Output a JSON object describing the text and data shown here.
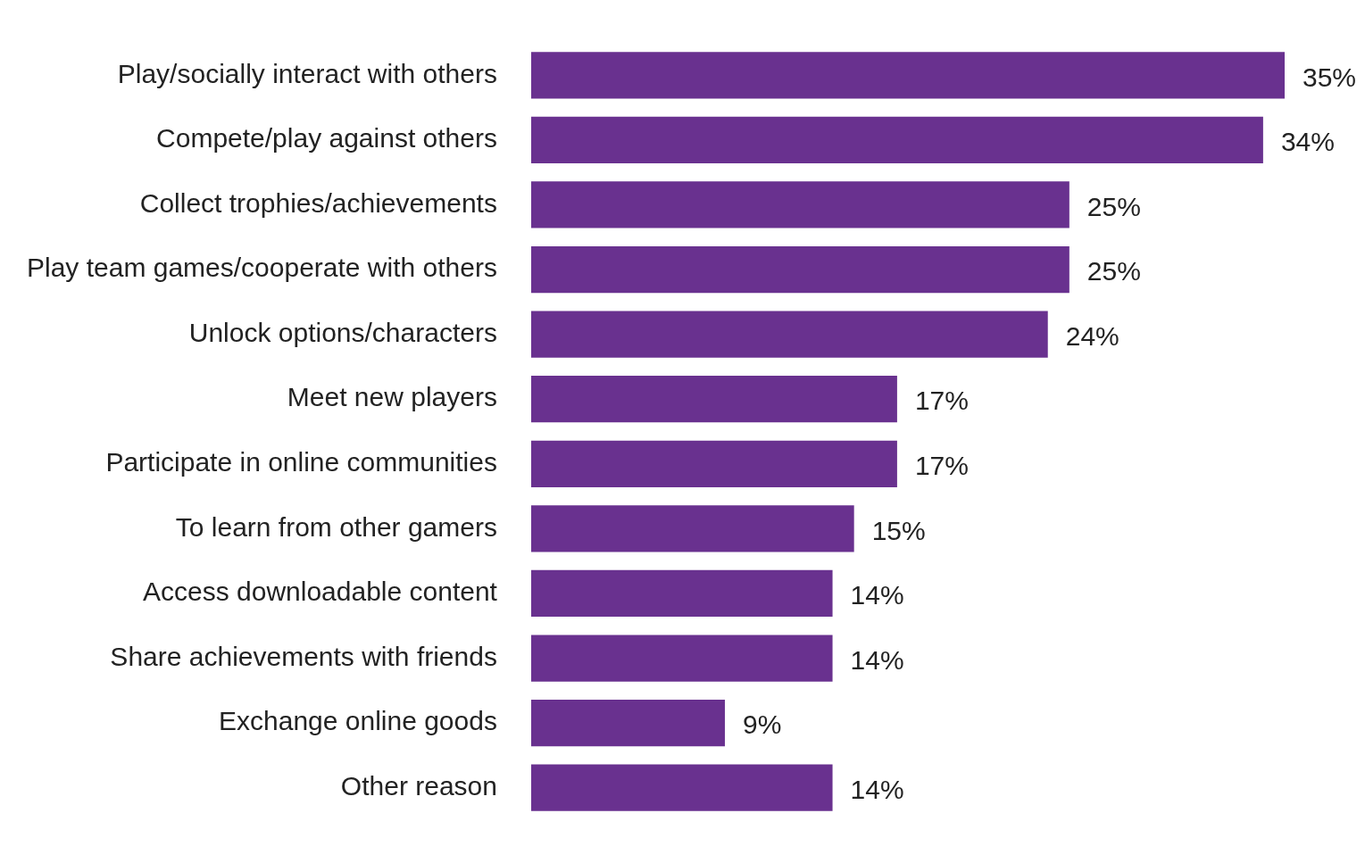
{
  "chart_data": {
    "type": "bar",
    "orientation": "horizontal",
    "grid": false,
    "legend": false,
    "tick_labels": "y",
    "categories": [
      "Play/socially interact with others",
      "Compete/play against others",
      "Collect trophies/achievements",
      "Play team games/cooperate with others",
      "Unlock options/characters",
      "Meet new players",
      "Participate in online communities",
      "To learn from other gamers",
      "Access downloadable content",
      "Share achievements with friends",
      "Exchange online goods",
      "Other reason"
    ],
    "values": [
      35,
      34,
      25,
      25,
      24,
      17,
      17,
      15,
      14,
      14,
      9,
      14
    ],
    "value_labels": [
      "35%",
      "34%",
      "25%",
      "25%",
      "24%",
      "17%",
      "17%",
      "15%",
      "14%",
      "14%",
      "9%",
      "14%"
    ],
    "color": "#69318f"
  }
}
